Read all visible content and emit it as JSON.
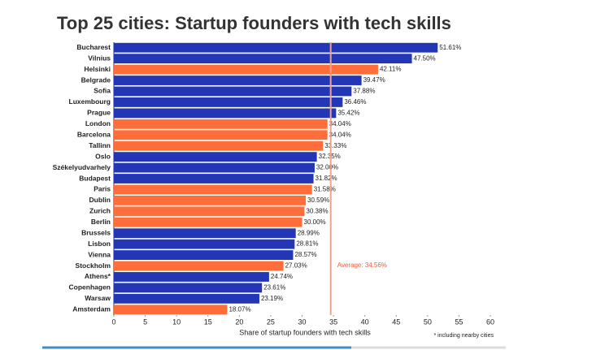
{
  "chart_data": {
    "type": "bar",
    "orientation": "horizontal",
    "title": "Top 25 cities: Startup founders with tech skills",
    "categories": [
      "Bucharest",
      "Vilnius",
      "Helsinki",
      "Belgrade",
      "Sofia",
      "Luxembourg",
      "Prague",
      "London",
      "Barcelona",
      "Tallinn",
      "Oslo",
      "Székelyudvarhely",
      "Budapest",
      "Paris",
      "Dublin",
      "Zurich",
      "Berlin",
      "Brussels",
      "Lisbon",
      "Vienna",
      "Stockholm",
      "Athens*",
      "Copenhagen",
      "Warsaw",
      "Amsterdam"
    ],
    "values": [
      51.61,
      47.5,
      42.11,
      39.47,
      37.88,
      36.46,
      35.42,
      34.04,
      34.04,
      33.33,
      32.35,
      32.0,
      31.82,
      31.58,
      30.59,
      30.38,
      30.0,
      28.99,
      28.81,
      28.57,
      27.03,
      24.74,
      23.61,
      23.19,
      18.07
    ],
    "value_labels": [
      "51.61%",
      "47.50%",
      "42.11%",
      "39.47%",
      "37.88%",
      "36.46%",
      "35.42%",
      "34.04%",
      "34.04%",
      "33.33%",
      "32.35%",
      "32.00%",
      "31.82%",
      "31.58%",
      "30.59%",
      "30.38%",
      "30.00%",
      "28.99%",
      "28.81%",
      "28.57%",
      "27.03%",
      "24.74%",
      "23.61%",
      "23.19%",
      "18.07%"
    ],
    "colors": [
      "#2336b5",
      "#2336b5",
      "#ff6d3a",
      "#2336b5",
      "#2336b5",
      "#2336b5",
      "#2336b5",
      "#ff6d3a",
      "#ff6d3a",
      "#ff6d3a",
      "#2336b5",
      "#2336b5",
      "#2336b5",
      "#ff6d3a",
      "#ff6d3a",
      "#ff6d3a",
      "#ff6d3a",
      "#2336b5",
      "#2336b5",
      "#2336b5",
      "#ff6d3a",
      "#2336b5",
      "#2336b5",
      "#2336b5",
      "#ff6d3a"
    ],
    "xlim": [
      0,
      60
    ],
    "xticks": [
      0,
      5,
      10,
      15,
      20,
      25,
      30,
      35,
      40,
      45,
      50,
      55,
      60
    ],
    "xlabel": "Share of startup founders with tech skills",
    "average": {
      "value": 34.56,
      "label": "Average: 34.56%"
    },
    "footnote": "* including nearby cities"
  }
}
